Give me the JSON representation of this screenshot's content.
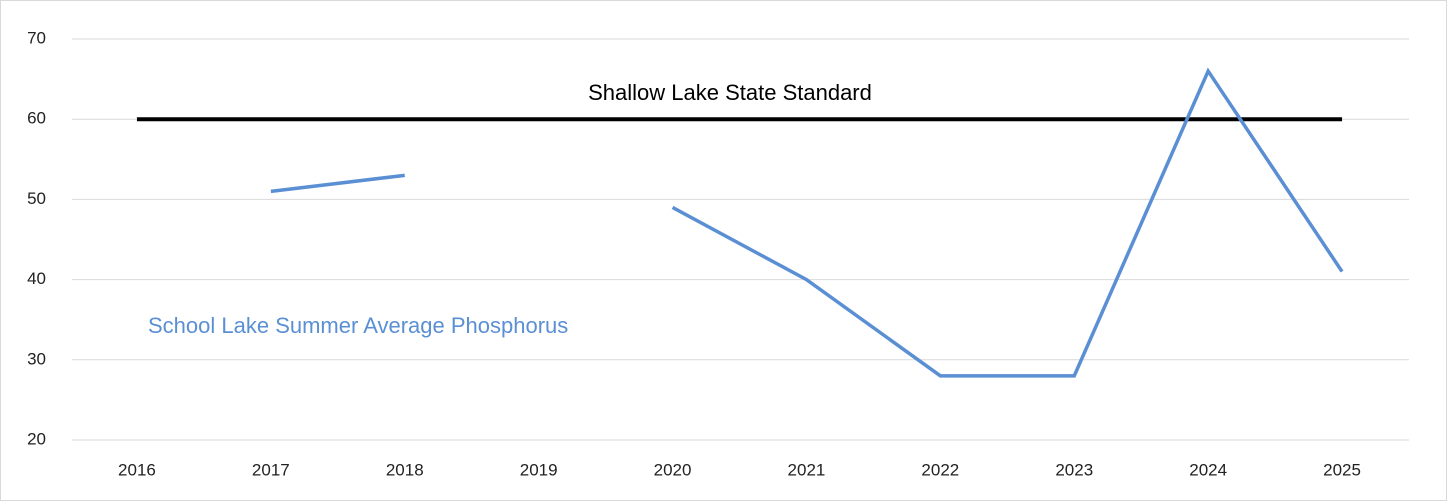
{
  "chart_data": {
    "type": "line",
    "categories": [
      "2016",
      "2017",
      "2018",
      "2019",
      "2020",
      "2021",
      "2022",
      "2023",
      "2024",
      "2025"
    ],
    "series": [
      {
        "name": "Shallow Lake State Standard",
        "color": "#000000",
        "values": [
          60,
          60,
          60,
          60,
          60,
          60,
          60,
          60,
          60,
          60
        ]
      },
      {
        "name": "School Lake Summer Average Phosphorus",
        "color": "#5b8fd4",
        "values": [
          null,
          51,
          53,
          null,
          49,
          40,
          28,
          28,
          66,
          41
        ]
      }
    ],
    "ylim": [
      20,
      70
    ],
    "yticks": [
      20,
      30,
      40,
      50,
      60,
      70
    ],
    "grid": true
  }
}
